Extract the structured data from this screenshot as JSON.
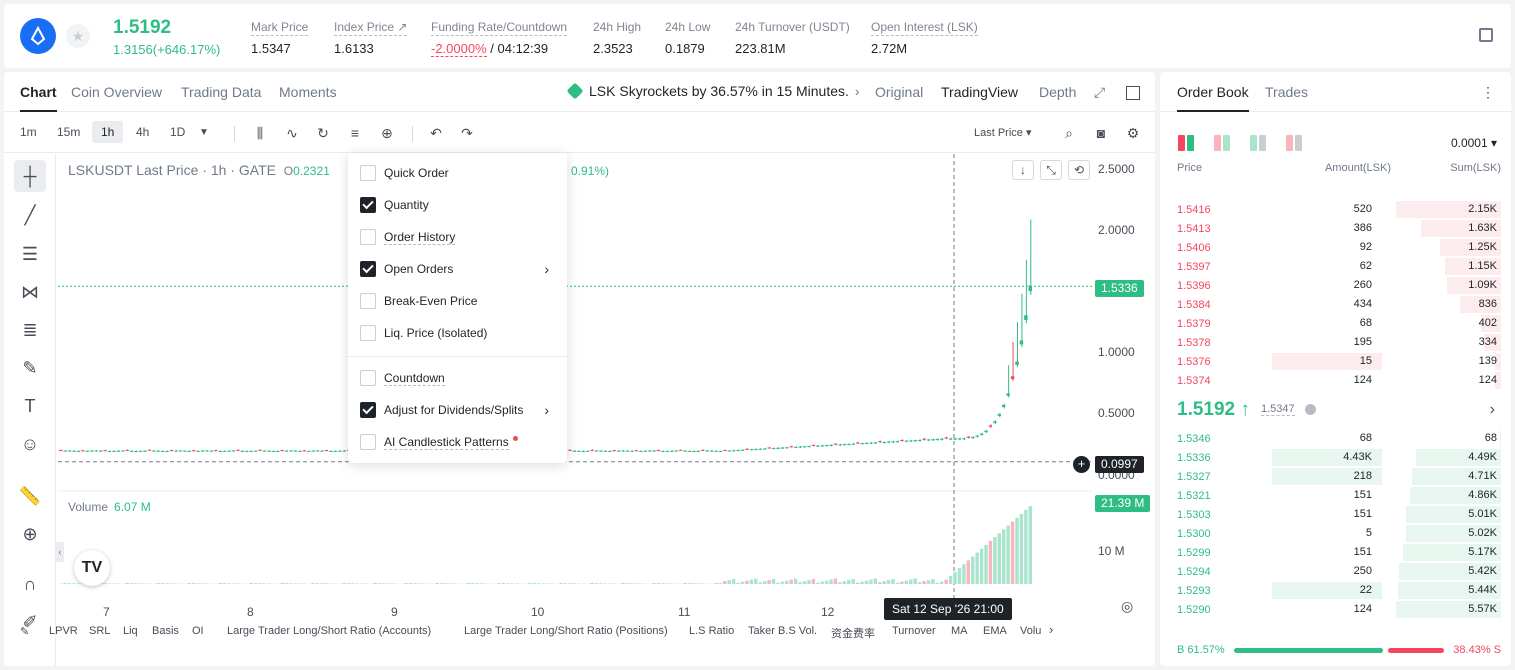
{
  "header": {
    "last_price": "1.5192",
    "change": "1.3156(+646.17%)",
    "stats": [
      {
        "label": "Mark Price",
        "value": "1.5347"
      },
      {
        "label": "Index Price ↗",
        "value": "1.6133"
      },
      {
        "label": "Funding Rate/Countdown",
        "value_neg": "-2.0000%",
        "value": " / 04:12:39"
      },
      {
        "label": "24h High",
        "value": "2.3523"
      },
      {
        "label": "24h Low",
        "value": "0.1879"
      },
      {
        "label": "24h Turnover (USDT)",
        "value": "223.81M"
      },
      {
        "label": "Open Interest (LSK)",
        "value": "2.72M"
      }
    ]
  },
  "chart_tabs": [
    "Chart",
    "Coin Overview",
    "Trading Data",
    "Moments"
  ],
  "news": "LSK Skyrockets by 36.57% in 15 Minutes.",
  "view_tabs": [
    "Original",
    "TradingView",
    "Depth"
  ],
  "timeframes": [
    "1m",
    "15m",
    "1h",
    "4h",
    "1D"
  ],
  "last_price_selector": "Last Price",
  "symbol": {
    "name": "LSKUSDT Last Price · 1h · GATE",
    "o_label": "O",
    "o_value": "0.2321",
    "pct": "0.91%)"
  },
  "volume": {
    "label": "Volume",
    "value": "6.07 M"
  },
  "price_axis": [
    "2.5000",
    "2.0000",
    "1.5336",
    "1.0000",
    "0.5000",
    "0.0997",
    "0.0000",
    "21.39 M",
    "10 M"
  ],
  "price_axis_colors": {
    "current": "#2ebd85",
    "crosshair": "#1e2329",
    "volume": "#2ebd85"
  },
  "dates": [
    "7",
    "8",
    "9",
    "10",
    "11",
    "12"
  ],
  "crosshair_date": "Sat 12 Sep '26   21:00",
  "indicators": [
    "LPVR",
    "SRL",
    "Liq",
    "Basis",
    "OI",
    "Large Trader Long/Short Ratio (Accounts)",
    "Large Trader Long/Short Ratio (Positions)",
    "L.S Ratio",
    "Taker B.S Vol.",
    "资金费率",
    "Turnover",
    "MA",
    "EMA",
    "Volu"
  ],
  "dropdown": {
    "items": [
      {
        "label": "Quick Order",
        "checked": false,
        "dashed": false
      },
      {
        "label": "Quantity",
        "checked": true,
        "dashed": false
      },
      {
        "label": "Order History",
        "checked": false,
        "dashed": true
      },
      {
        "label": "Open Orders",
        "checked": true,
        "dashed": false,
        "arrow": true
      },
      {
        "label": "Break-Even Price",
        "checked": false,
        "dashed": false
      },
      {
        "label": "Liq. Price (Isolated)",
        "checked": false,
        "dashed": false
      },
      {
        "label": "Countdown",
        "checked": false,
        "dashed": true
      },
      {
        "label": "Adjust for Dividends/Splits",
        "checked": true,
        "dashed": false,
        "arrow": true
      },
      {
        "label": "AI Candlestick Patterns",
        "checked": false,
        "dashed": true,
        "dot": true
      }
    ]
  },
  "orderbook": {
    "tabs": [
      "Order Book",
      "Trades"
    ],
    "precision": "0.0001",
    "headers": [
      "Price",
      "Amount(LSK)",
      "Sum(LSK)"
    ],
    "asks": [
      {
        "price": "1.5416",
        "amount": "520",
        "sum": "2.15K",
        "depth": 1.0,
        "amt_depth": 0
      },
      {
        "price": "1.5413",
        "amount": "386",
        "sum": "1.63K",
        "depth": 0.76,
        "amt_depth": 0
      },
      {
        "price": "1.5406",
        "amount": "92",
        "sum": "1.25K",
        "depth": 0.58,
        "amt_depth": 0
      },
      {
        "price": "1.5397",
        "amount": "62",
        "sum": "1.15K",
        "depth": 0.53,
        "amt_depth": 0
      },
      {
        "price": "1.5396",
        "amount": "260",
        "sum": "1.09K",
        "depth": 0.51,
        "amt_depth": 0
      },
      {
        "price": "1.5384",
        "amount": "434",
        "sum": "836",
        "depth": 0.39,
        "amt_depth": 0
      },
      {
        "price": "1.5379",
        "amount": "68",
        "sum": "402",
        "depth": 0.19,
        "amt_depth": 0
      },
      {
        "price": "1.5378",
        "amount": "195",
        "sum": "334",
        "depth": 0.16,
        "amt_depth": 0
      },
      {
        "price": "1.5376",
        "amount": "15",
        "sum": "139",
        "depth": 0.06,
        "amt_depth": 1.0
      },
      {
        "price": "1.5374",
        "amount": "124",
        "sum": "124",
        "depth": 0.06,
        "amt_depth": 0
      }
    ],
    "mid_price": "1.5192 ↑",
    "mark_price": "1.5347",
    "bids": [
      {
        "price": "1.5346",
        "amount": "68",
        "sum": "68",
        "depth": 0.01,
        "amt_depth": 0
      },
      {
        "price": "1.5336",
        "amount": "4.43K",
        "sum": "4.49K",
        "depth": 0.81,
        "amt_depth": 1.0
      },
      {
        "price": "1.5327",
        "amount": "218",
        "sum": "4.71K",
        "depth": 0.85,
        "amt_depth": 1.0
      },
      {
        "price": "1.5321",
        "amount": "151",
        "sum": "4.86K",
        "depth": 0.87,
        "amt_depth": 0
      },
      {
        "price": "1.5303",
        "amount": "151",
        "sum": "5.01K",
        "depth": 0.9,
        "amt_depth": 0
      },
      {
        "price": "1.5300",
        "amount": "5",
        "sum": "5.02K",
        "depth": 0.9,
        "amt_depth": 0
      },
      {
        "price": "1.5299",
        "amount": "151",
        "sum": "5.17K",
        "depth": 0.93,
        "amt_depth": 0
      },
      {
        "price": "1.5294",
        "amount": "250",
        "sum": "5.42K",
        "depth": 0.97,
        "amt_depth": 0
      },
      {
        "price": "1.5293",
        "amount": "22",
        "sum": "5.44K",
        "depth": 0.98,
        "amt_depth": 1.0
      },
      {
        "price": "1.5290",
        "amount": "124",
        "sum": "5.57K",
        "depth": 1.0,
        "amt_depth": 0
      }
    ],
    "buy_ratio": "B 61.57%",
    "sell_ratio": "38.43% S"
  },
  "colors": {
    "up": "#2ebd85",
    "down": "#f6465d",
    "ask_bg": "#fdecee",
    "bid_bg": "#e7f6ef"
  }
}
